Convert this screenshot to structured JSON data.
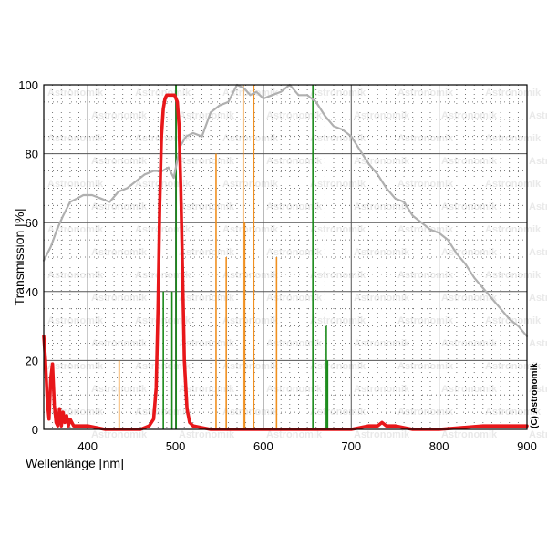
{
  "chart_data": {
    "type": "line",
    "xlabel": "Wellenlänge [nm]",
    "ylabel": "Transmission [%]",
    "xlim": [
      350,
      900
    ],
    "ylim": [
      0,
      100
    ],
    "x_ticks": [
      400,
      500,
      600,
      700,
      800,
      900
    ],
    "y_ticks": [
      0,
      20,
      40,
      60,
      80,
      100
    ],
    "grid": true,
    "legend": "none",
    "watermark": "Astronomik",
    "copyright": "(C) Astronomik",
    "series": [
      {
        "color": "#b0b0b0",
        "x": [
          350,
          358,
          365,
          372,
          380,
          388,
          395,
          405,
          415,
          425,
          435,
          445,
          455,
          465,
          475,
          485,
          492,
          498,
          505,
          512,
          520,
          530,
          540,
          550,
          560,
          570,
          578,
          585,
          592,
          600,
          610,
          620,
          630,
          640,
          650,
          660,
          670,
          680,
          690,
          700,
          710,
          720,
          730,
          740,
          750,
          760,
          770,
          780,
          790,
          800,
          810,
          820,
          830,
          840,
          850,
          860,
          870,
          880,
          890,
          900
        ],
        "values": [
          49,
          53,
          58,
          62,
          66,
          67,
          68,
          68,
          67,
          66,
          69,
          70,
          72,
          74,
          75,
          75,
          76,
          73,
          82,
          85,
          86,
          85,
          92,
          94,
          95,
          100,
          99,
          97,
          98,
          96,
          97,
          98,
          100,
          97,
          97,
          95,
          91,
          88,
          87,
          85,
          81,
          77,
          74,
          70,
          67,
          66,
          62,
          60,
          58,
          57,
          55,
          51,
          48,
          44,
          41,
          38,
          35,
          32,
          30,
          27
        ]
      },
      {
        "color": "#e8171a",
        "x": [
          350,
          352,
          354,
          356,
          358,
          360,
          362,
          364,
          366,
          368,
          370,
          372,
          374,
          376,
          378,
          380,
          384,
          390,
          400,
          420,
          440,
          460,
          470,
          475,
          478,
          480,
          482,
          484,
          486,
          488,
          490,
          493,
          496,
          499,
          502,
          504,
          506,
          508,
          510,
          513,
          516,
          520,
          540,
          560,
          580,
          600,
          620,
          650,
          700,
          720,
          730,
          735,
          740,
          750,
          770,
          800,
          850,
          900
        ],
        "values": [
          27,
          20,
          8,
          3,
          15,
          19,
          7,
          2,
          1,
          6,
          1,
          5,
          2,
          4,
          1,
          3,
          1,
          1,
          1,
          0,
          0,
          0,
          1,
          3,
          12,
          35,
          65,
          85,
          93,
          96,
          97,
          97,
          97,
          97,
          95,
          88,
          70,
          45,
          20,
          6,
          2,
          1,
          0,
          0,
          0,
          0,
          0,
          0,
          0,
          1,
          1,
          2,
          1,
          1,
          0,
          0,
          1,
          1
        ]
      }
    ],
    "emission_lines": [
      {
        "x": 435.8,
        "values": 20,
        "color": "#f09020"
      },
      {
        "x": 486.1,
        "values": 40,
        "color": "#1a8a1a"
      },
      {
        "x": 495.9,
        "values": 40,
        "color": "#1a8a1a"
      },
      {
        "x": 500.7,
        "values": 100,
        "color": "#1a8a1a"
      },
      {
        "x": 546.1,
        "values": 80,
        "color": "#f09020"
      },
      {
        "x": 557.7,
        "values": 50,
        "color": "#f09020"
      },
      {
        "x": 577.0,
        "values": 100,
        "color": "#f09020"
      },
      {
        "x": 578.7,
        "values": 60,
        "color": "#f09020"
      },
      {
        "x": 589.0,
        "values": 100,
        "color": "#f09020"
      },
      {
        "x": 615.0,
        "values": 50,
        "color": "#f09020"
      },
      {
        "x": 656.3,
        "values": 100,
        "color": "#1a8a1a"
      },
      {
        "x": 671.6,
        "values": 30,
        "color": "#1a8a1a"
      },
      {
        "x": 673.1,
        "values": 20,
        "color": "#1a8a1a"
      }
    ]
  }
}
